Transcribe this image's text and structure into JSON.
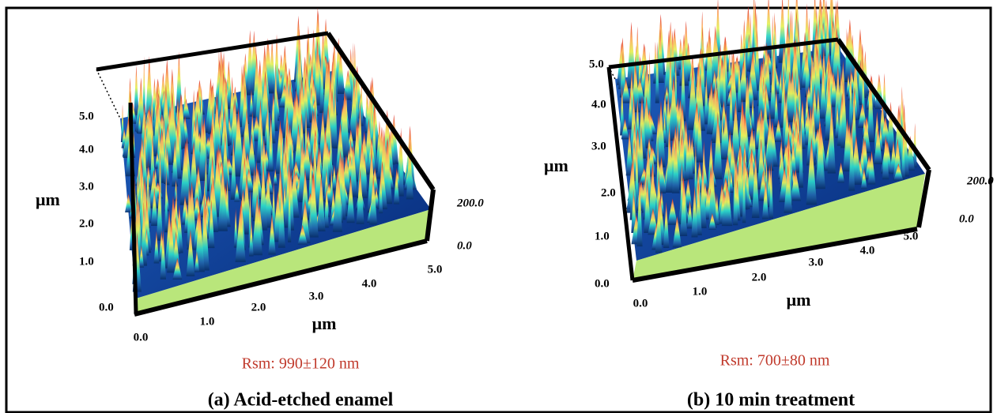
{
  "panels": [
    {
      "z_axis": {
        "title": "μm",
        "ticks": [
          "0.0",
          "1.0",
          "2.0",
          "3.0",
          "4.0",
          "5.0"
        ]
      },
      "x_axis": {
        "title": "μm",
        "ticks": [
          "0.0",
          "1.0",
          "2.0",
          "3.0",
          "4.0",
          "5.0"
        ]
      },
      "y_axis": {
        "ticks": [
          "0.0",
          "200.0"
        ]
      },
      "roughness": "Rsm: 990±120 nm",
      "caption": "(a) Acid-etched enamel"
    },
    {
      "z_axis": {
        "title": "μm",
        "ticks": [
          "0.0",
          "1.0",
          "2.0",
          "3.0",
          "4.0",
          "5.0"
        ]
      },
      "x_axis": {
        "title": "μm",
        "ticks": [
          "0.0",
          "1.0",
          "2.0",
          "3.0",
          "4.0",
          "5.0"
        ]
      },
      "y_axis": {
        "ticks": [
          "0.0",
          "200.0"
        ]
      },
      "roughness": "Rsm: 700±80 nm",
      "caption": "(b) 10 min treatment"
    }
  ]
}
